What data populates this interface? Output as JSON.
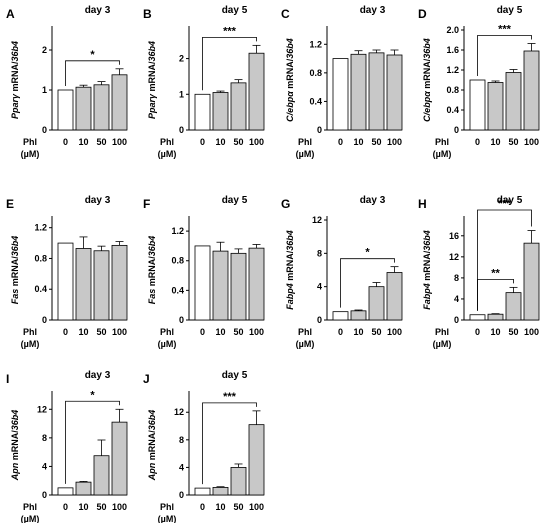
{
  "figure": {
    "x_prefix": "Phl",
    "x_unit": "(µM)",
    "bar_fill_control": "#ffffff",
    "bar_fill_treated": "#c8c8c8",
    "stroke_color": "#000000"
  },
  "chart_data": [
    {
      "panel": "A",
      "title": "day 3",
      "type": "bar",
      "ylabel_gene": "Pparγ",
      "ylabel_rest": " mRNA/",
      "ylabel_ref": "36b4",
      "categories": [
        "0",
        "10",
        "50",
        "100"
      ],
      "values": [
        1.0,
        1.07,
        1.13,
        1.38
      ],
      "errors": [
        0,
        0.05,
        0.08,
        0.15
      ],
      "ylim": [
        0,
        2.5
      ],
      "yticks": [
        "0",
        "1",
        "2"
      ],
      "ytick_values": [
        0,
        1,
        2
      ],
      "significance": {
        "label": "*",
        "from": "0",
        "to": "100"
      }
    },
    {
      "panel": "B",
      "title": "day 5",
      "type": "bar",
      "ylabel_gene": "Pparγ",
      "ylabel_rest": " mRNA/",
      "ylabel_ref": "36b4",
      "categories": [
        "0",
        "10",
        "50",
        "100"
      ],
      "values": [
        1.0,
        1.05,
        1.32,
        2.15
      ],
      "errors": [
        0,
        0.04,
        0.09,
        0.22
      ],
      "ylim": [
        0,
        2.8
      ],
      "yticks": [
        "0",
        "1",
        "2"
      ],
      "ytick_values": [
        0,
        1,
        2
      ],
      "significance": {
        "label": "***",
        "from": "0",
        "to": "100"
      }
    },
    {
      "panel": "C",
      "title": "day 3",
      "type": "bar",
      "ylabel_gene": "C/ebpα",
      "ylabel_rest": " mRNA/",
      "ylabel_ref": "36b4",
      "categories": [
        "0",
        "10",
        "50",
        "100"
      ],
      "values": [
        1.0,
        1.06,
        1.08,
        1.05
      ],
      "errors": [
        0,
        0.05,
        0.04,
        0.07
      ],
      "ylim": [
        0,
        1.4
      ],
      "yticks": [
        "0",
        "0.4",
        "0.8",
        "1.2"
      ],
      "ytick_values": [
        0,
        0.4,
        0.8,
        1.2
      ],
      "significance": null
    },
    {
      "panel": "D",
      "title": "day 5",
      "type": "bar",
      "ylabel_gene": "C/ebpα",
      "ylabel_rest": " mRNA/",
      "ylabel_ref": "36b4",
      "categories": [
        "0",
        "10",
        "50",
        "100"
      ],
      "values": [
        1.0,
        0.95,
        1.15,
        1.58
      ],
      "errors": [
        0,
        0.03,
        0.06,
        0.15
      ],
      "ylim": [
        0,
        2.0
      ],
      "yticks": [
        "0",
        "0.4",
        "0.8",
        "1.2",
        "1.6",
        "2.0"
      ],
      "ytick_values": [
        0,
        0.4,
        0.8,
        1.2,
        1.6,
        2.0
      ],
      "significance": {
        "label": "***",
        "from": "0",
        "to": "100"
      }
    },
    {
      "panel": "E",
      "title": "day 3",
      "type": "bar",
      "ylabel_gene": "Fas",
      "ylabel_rest": " mRNA/",
      "ylabel_ref": "36b4",
      "categories": [
        "0",
        "10",
        "50",
        "100"
      ],
      "values": [
        1.0,
        0.93,
        0.9,
        0.97
      ],
      "errors": [
        0,
        0.15,
        0.06,
        0.05
      ],
      "ylim": [
        0,
        1.3
      ],
      "yticks": [
        "0",
        "0.4",
        "0.8",
        "1.2"
      ],
      "ytick_values": [
        0,
        0.4,
        0.8,
        1.2
      ],
      "significance": null
    },
    {
      "panel": "F",
      "title": "day 5",
      "type": "bar",
      "ylabel_gene": "Fas",
      "ylabel_rest": " mRNA/",
      "ylabel_ref": "36b4",
      "categories": [
        "0",
        "10",
        "50",
        "100"
      ],
      "values": [
        1.0,
        0.93,
        0.9,
        0.97
      ],
      "errors": [
        0,
        0.12,
        0.06,
        0.05
      ],
      "ylim": [
        0,
        1.35
      ],
      "yticks": [
        "0",
        "0.4",
        "0.8",
        "1.2"
      ],
      "ytick_values": [
        0,
        0.4,
        0.8,
        1.2
      ],
      "significance": null
    },
    {
      "panel": "G",
      "title": "day 3",
      "type": "bar",
      "ylabel_gene": "Fabp4",
      "ylabel_rest": " mRNA/",
      "ylabel_ref": "36b4",
      "categories": [
        "0",
        "10",
        "50",
        "100"
      ],
      "values": [
        1.0,
        1.1,
        4.0,
        5.7
      ],
      "errors": [
        0,
        0.1,
        0.5,
        0.7
      ],
      "ylim": [
        0,
        12
      ],
      "yticks": [
        "0",
        "4",
        "8",
        "12"
      ],
      "ytick_values": [
        0,
        4,
        8,
        12
      ],
      "significance": {
        "label": "*",
        "from": "0",
        "to": "100"
      }
    },
    {
      "panel": "H",
      "title": "day 5",
      "type": "bar",
      "ylabel_gene": "Fabp4",
      "ylabel_rest": " mRNA/",
      "ylabel_ref": "36b4",
      "categories": [
        "0",
        "10",
        "50",
        "100"
      ],
      "values": [
        1.0,
        1.1,
        5.2,
        14.6
      ],
      "errors": [
        0,
        0.1,
        1.0,
        2.4
      ],
      "ylim": [
        0,
        19
      ],
      "yticks": [
        "0",
        "4",
        "8",
        "12",
        "16"
      ],
      "ytick_values": [
        0,
        4,
        8,
        12,
        16
      ],
      "significance": {
        "label": "**",
        "from": "0",
        "to": "50"
      },
      "significance2": {
        "label": "***",
        "from": "0",
        "to": "100"
      }
    },
    {
      "panel": "I",
      "title": "day 3",
      "type": "bar",
      "ylabel_gene": "Apn",
      "ylabel_rest": " mRNA/",
      "ylabel_ref": "36b4",
      "categories": [
        "0",
        "10",
        "50",
        "100"
      ],
      "values": [
        1.0,
        1.8,
        5.5,
        10.2
      ],
      "errors": [
        0,
        0.1,
        2.2,
        1.8
      ],
      "ylim": [
        0,
        14
      ],
      "yticks": [
        "0",
        "4",
        "8",
        "12"
      ],
      "ytick_values": [
        0,
        4,
        8,
        12
      ],
      "significance": {
        "label": "*",
        "from": "0",
        "to": "100"
      }
    },
    {
      "panel": "J",
      "title": "day 5",
      "type": "bar",
      "ylabel_gene": "Apn",
      "ylabel_rest": " mRNA/",
      "ylabel_ref": "36b4",
      "categories": [
        "0",
        "10",
        "50",
        "100"
      ],
      "values": [
        1.0,
        1.1,
        4.0,
        10.2
      ],
      "errors": [
        0,
        0.1,
        0.5,
        2.0
      ],
      "ylim": [
        0,
        14.5
      ],
      "yticks": [
        "0",
        "4",
        "8",
        "12"
      ],
      "ytick_values": [
        0,
        4,
        8,
        12
      ],
      "significance": {
        "label": "***",
        "from": "0",
        "to": "100"
      }
    }
  ]
}
